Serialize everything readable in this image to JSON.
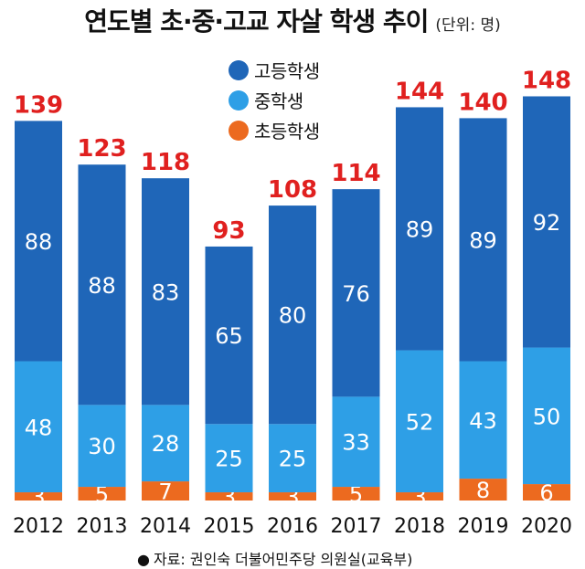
{
  "title": "연도별 초·중·고교 자살 학생 추이",
  "unit": "(단위: 명)",
  "source": "자료: 권인숙 더불어민주당 의원실(교육부)",
  "colors": {
    "high": "#1f66b8",
    "middle": "#2e9fe6",
    "elementary": "#ec6a1f",
    "total_label": "#e0201f",
    "segment_label": "#ffffff",
    "axis_label": "#111111"
  },
  "legend": [
    {
      "name": "고등학생",
      "color": "#1f66b8"
    },
    {
      "name": "중학생",
      "color": "#2e9fe6"
    },
    {
      "name": "초등학생",
      "color": "#ec6a1f"
    }
  ],
  "chart_data": {
    "type": "bar",
    "stacked": true,
    "title": "연도별 초·중·고교 자살 학생 추이",
    "unit": "(단위: 명)",
    "categories": [
      "2012",
      "2013",
      "2014",
      "2015",
      "2016",
      "2017",
      "2018",
      "2019",
      "2020"
    ],
    "series": [
      {
        "name": "초등학생",
        "values": [
          3,
          5,
          7,
          3,
          3,
          5,
          3,
          8,
          6
        ]
      },
      {
        "name": "중학생",
        "values": [
          48,
          30,
          28,
          25,
          25,
          33,
          52,
          43,
          50
        ]
      },
      {
        "name": "고등학생",
        "values": [
          88,
          88,
          83,
          65,
          80,
          76,
          89,
          89,
          92
        ]
      }
    ],
    "totals": [
      139,
      123,
      118,
      93,
      108,
      114,
      144,
      140,
      148
    ],
    "legend_position": "top-center",
    "grid": false
  }
}
